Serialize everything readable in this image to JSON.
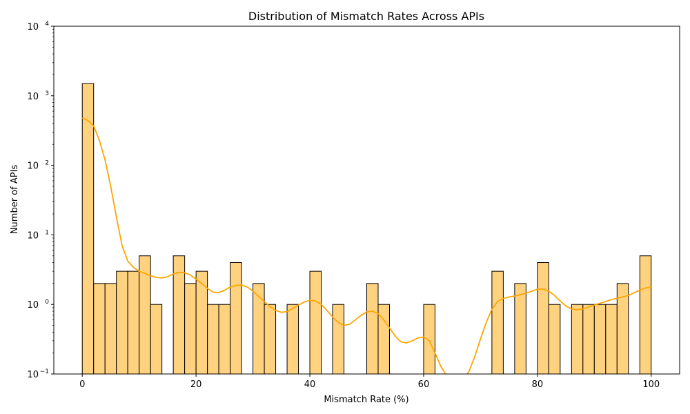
{
  "chart_data": {
    "type": "bar",
    "title": "Distribution of Mismatch Rates Across APIs",
    "xlabel": "Mismatch Rate (%)",
    "ylabel": "Number of APIs",
    "xlim": [
      -5,
      105
    ],
    "ylim": [
      0.1,
      10000
    ],
    "yscale": "log",
    "grid": false,
    "bar_color": "#ffd27f",
    "bar_edge_color": "#000000",
    "kde_color": "#ffa500",
    "x_ticks": [
      0,
      20,
      40,
      60,
      80,
      100
    ],
    "x_tick_labels": [
      "0",
      "20",
      "40",
      "60",
      "80",
      "100"
    ],
    "y_ticks": [
      0.1,
      1,
      10,
      100,
      1000,
      10000
    ],
    "y_tick_labels": [
      {
        "base": "10",
        "exp": "−1"
      },
      {
        "base": "10",
        "exp": "0"
      },
      {
        "base": "10",
        "exp": "1"
      },
      {
        "base": "10",
        "exp": "2"
      },
      {
        "base": "10",
        "exp": "3"
      },
      {
        "base": "10",
        "exp": "4"
      }
    ],
    "bin_width": 2,
    "bins": [
      {
        "x0": 0,
        "x1": 2,
        "count": 1500
      },
      {
        "x0": 2,
        "x1": 4,
        "count": 2
      },
      {
        "x0": 4,
        "x1": 6,
        "count": 2
      },
      {
        "x0": 6,
        "x1": 8,
        "count": 3
      },
      {
        "x0": 8,
        "x1": 10,
        "count": 3
      },
      {
        "x0": 10,
        "x1": 12,
        "count": 5
      },
      {
        "x0": 12,
        "x1": 14,
        "count": 1
      },
      {
        "x0": 16,
        "x1": 18,
        "count": 5
      },
      {
        "x0": 18,
        "x1": 20,
        "count": 2
      },
      {
        "x0": 20,
        "x1": 22,
        "count": 3
      },
      {
        "x0": 22,
        "x1": 24,
        "count": 1
      },
      {
        "x0": 24,
        "x1": 26,
        "count": 1
      },
      {
        "x0": 26,
        "x1": 28,
        "count": 4
      },
      {
        "x0": 30,
        "x1": 32,
        "count": 2
      },
      {
        "x0": 32,
        "x1": 34,
        "count": 1
      },
      {
        "x0": 36,
        "x1": 38,
        "count": 1
      },
      {
        "x0": 40,
        "x1": 42,
        "count": 3
      },
      {
        "x0": 44,
        "x1": 46,
        "count": 1
      },
      {
        "x0": 50,
        "x1": 52,
        "count": 2
      },
      {
        "x0": 52,
        "x1": 54,
        "count": 1
      },
      {
        "x0": 60,
        "x1": 62,
        "count": 1
      },
      {
        "x0": 72,
        "x1": 74,
        "count": 3
      },
      {
        "x0": 76,
        "x1": 78,
        "count": 2
      },
      {
        "x0": 80,
        "x1": 82,
        "count": 4
      },
      {
        "x0": 82,
        "x1": 84,
        "count": 1
      },
      {
        "x0": 86,
        "x1": 88,
        "count": 1
      },
      {
        "x0": 88,
        "x1": 90,
        "count": 1
      },
      {
        "x0": 90,
        "x1": 92,
        "count": 1
      },
      {
        "x0": 92,
        "x1": 94,
        "count": 1
      },
      {
        "x0": 94,
        "x1": 96,
        "count": 2
      },
      {
        "x0": 98,
        "x1": 100,
        "count": 5
      }
    ],
    "kde_curve": [
      [
        0,
        480
      ],
      [
        1,
        440
      ],
      [
        2,
        370
      ],
      [
        3,
        230
      ],
      [
        4,
        120
      ],
      [
        5,
        50
      ],
      [
        6,
        18
      ],
      [
        7,
        7
      ],
      [
        8,
        4.2
      ],
      [
        9,
        3.4
      ],
      [
        10,
        3.0
      ],
      [
        11,
        2.8
      ],
      [
        12,
        2.6
      ],
      [
        13,
        2.45
      ],
      [
        14,
        2.4
      ],
      [
        15,
        2.5
      ],
      [
        16,
        2.75
      ],
      [
        17,
        2.9
      ],
      [
        18,
        2.85
      ],
      [
        19,
        2.65
      ],
      [
        20,
        2.3
      ],
      [
        21,
        2.0
      ],
      [
        22,
        1.7
      ],
      [
        23,
        1.5
      ],
      [
        24,
        1.48
      ],
      [
        25,
        1.6
      ],
      [
        26,
        1.78
      ],
      [
        27,
        1.88
      ],
      [
        28,
        1.9
      ],
      [
        29,
        1.78
      ],
      [
        30,
        1.55
      ],
      [
        31,
        1.3
      ],
      [
        32,
        1.1
      ],
      [
        33,
        0.93
      ],
      [
        34,
        0.82
      ],
      [
        35,
        0.77
      ],
      [
        36,
        0.79
      ],
      [
        37,
        0.88
      ],
      [
        38,
        0.98
      ],
      [
        39,
        1.08
      ],
      [
        40,
        1.15
      ],
      [
        41,
        1.12
      ],
      [
        42,
        1.0
      ],
      [
        43,
        0.82
      ],
      [
        44,
        0.66
      ],
      [
        45,
        0.55
      ],
      [
        46,
        0.5
      ],
      [
        47,
        0.52
      ],
      [
        48,
        0.6
      ],
      [
        49,
        0.7
      ],
      [
        50,
        0.78
      ],
      [
        51,
        0.8
      ],
      [
        52,
        0.74
      ],
      [
        53,
        0.6
      ],
      [
        54,
        0.46
      ],
      [
        55,
        0.35
      ],
      [
        56,
        0.29
      ],
      [
        57,
        0.28
      ],
      [
        58,
        0.3
      ],
      [
        59,
        0.33
      ],
      [
        60,
        0.34
      ],
      [
        61,
        0.3
      ],
      [
        62,
        0.2
      ],
      [
        63,
        0.13
      ],
      [
        64,
        0.095
      ],
      [
        67.5,
        0.095
      ],
      [
        68,
        0.11
      ],
      [
        69,
        0.18
      ],
      [
        70,
        0.32
      ],
      [
        71,
        0.55
      ],
      [
        72,
        0.85
      ],
      [
        73,
        1.1
      ],
      [
        74,
        1.22
      ],
      [
        75,
        1.28
      ],
      [
        76,
        1.32
      ],
      [
        77,
        1.38
      ],
      [
        78,
        1.45
      ],
      [
        79,
        1.55
      ],
      [
        80,
        1.65
      ],
      [
        81,
        1.66
      ],
      [
        82,
        1.55
      ],
      [
        83,
        1.35
      ],
      [
        84,
        1.12
      ],
      [
        85,
        0.95
      ],
      [
        86,
        0.86
      ],
      [
        87,
        0.84
      ],
      [
        88,
        0.86
      ],
      [
        89,
        0.92
      ],
      [
        90,
        0.98
      ],
      [
        91,
        1.04
      ],
      [
        92,
        1.1
      ],
      [
        93,
        1.17
      ],
      [
        94,
        1.23
      ],
      [
        95,
        1.28
      ],
      [
        96,
        1.35
      ],
      [
        97,
        1.47
      ],
      [
        98,
        1.6
      ],
      [
        99,
        1.72
      ],
      [
        100,
        1.78
      ]
    ]
  }
}
